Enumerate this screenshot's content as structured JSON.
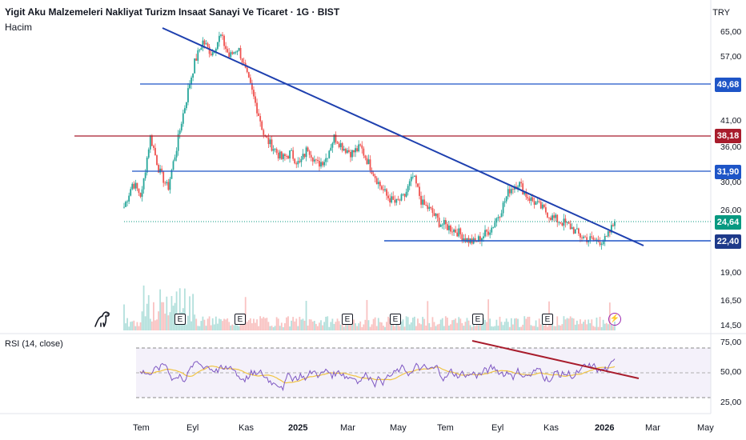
{
  "header": {
    "title": "Yigit Aku Malzemeleri Nakliyat Turizm Insaat Sanayi Ve Ticaret · 1G · BIST",
    "indicator": "Hacim",
    "currency": "TRY"
  },
  "rsi": {
    "label": "RSI (14, close)"
  },
  "colors": {
    "up": "#26a69a",
    "down": "#ef5350",
    "trendline": "#1e40af",
    "support": "#1e55c7",
    "resistance_red": "#a81c2c",
    "rsi_line": "#7e57c2",
    "rsi_ma": "#f0c443",
    "rsi_trend": "#a81c2c"
  },
  "price_axis": [
    {
      "value": 65,
      "label": "65,00"
    },
    {
      "value": 57,
      "label": "57,00"
    },
    {
      "value": 41,
      "label": "41,00"
    },
    {
      "value": 36,
      "label": "36,00"
    },
    {
      "value": 30,
      "label": "30,00"
    },
    {
      "value": 26,
      "label": "26,00"
    },
    {
      "value": 19,
      "label": "19,00"
    },
    {
      "value": 16.5,
      "label": "16,50"
    },
    {
      "value": 14.5,
      "label": "14,50"
    }
  ],
  "rsi_axis": [
    "75,00",
    "50,00",
    "25,00"
  ],
  "price_tags": [
    {
      "label": "49,68",
      "value": 49.68,
      "color": "#1e55c7"
    },
    {
      "label": "38,18",
      "value": 38.18,
      "color": "#a81c2c"
    },
    {
      "label": "31,90",
      "value": 31.9,
      "color": "#1e55c7"
    },
    {
      "label": "24,64",
      "value": 24.64,
      "color": "#089981"
    },
    {
      "label": "22,40",
      "value": 22.4,
      "color": "#1e3a8a"
    }
  ],
  "time_axis": [
    {
      "label": "Tem",
      "bold": false
    },
    {
      "label": "Eyl",
      "bold": false
    },
    {
      "label": "Kas",
      "bold": false
    },
    {
      "label": "2025",
      "bold": true
    },
    {
      "label": "Mar",
      "bold": false
    },
    {
      "label": "May",
      "bold": false
    },
    {
      "label": "Tem",
      "bold": false
    },
    {
      "label": "Eyl",
      "bold": false
    },
    {
      "label": "Kas",
      "bold": false
    },
    {
      "label": "2026",
      "bold": true
    },
    {
      "label": "Mar",
      "bold": false
    },
    {
      "label": "May",
      "bold": false
    }
  ],
  "earnings_markers": [
    "E",
    "E",
    "E",
    "E",
    "E",
    "E"
  ],
  "flash_marker": "⚡",
  "chart_data": {
    "type": "candlestick",
    "last_price": 24.64,
    "levels": [
      49.68,
      38.18,
      31.9,
      22.4
    ],
    "trendline": {
      "from": 65.5,
      "to": 22.0
    },
    "price_path": [
      26.5,
      30,
      28,
      38,
      32,
      29,
      36,
      45,
      55,
      62,
      58,
      64,
      57,
      60,
      52,
      45,
      38,
      36,
      34,
      35,
      33,
      36,
      33,
      34,
      38,
      36,
      35,
      36,
      33,
      30,
      28,
      27,
      28,
      31,
      27,
      26,
      24.5,
      24,
      23.5,
      22.6,
      22.2,
      23,
      24,
      26,
      29,
      30,
      28,
      27,
      26,
      25,
      24.6,
      24,
      23,
      22.6,
      22.4,
      22.5,
      24.6
    ],
    "rsi_range": [
      25,
      75
    ]
  }
}
